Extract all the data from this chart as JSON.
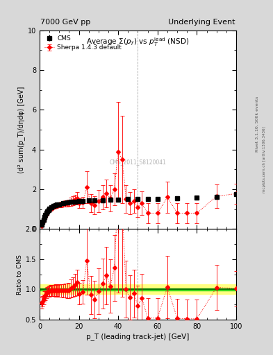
{
  "title_left": "7000 GeV pp",
  "title_right": "Underlying Event",
  "xlabel": "p_T (leading track-jet) [GeV]",
  "ylabel_main": "⟨d² sum(p_T)/dηdφ⟩ [GeV]",
  "ylabel_ratio": "Ratio to CMS",
  "watermark": "CMS_2011_S8120041",
  "rivet_label": "Rivet 3.1.10, 500k events",
  "mcplots_label": "mcplots.cern.ch [arXiv:1306.3436]",
  "cms_data": {
    "x": [
      1.0,
      1.5,
      2.0,
      2.5,
      3.0,
      3.5,
      4.0,
      4.5,
      5.0,
      6.0,
      7.0,
      8.0,
      9.0,
      10.0,
      12.0,
      14.0,
      16.0,
      18.0,
      20.0,
      22.0,
      25.0,
      28.0,
      32.0,
      36.0,
      40.0,
      45.0,
      50.0,
      55.0,
      60.0,
      70.0,
      80.0,
      90.0,
      100.0
    ],
    "y": [
      0.22,
      0.35,
      0.48,
      0.6,
      0.71,
      0.8,
      0.88,
      0.95,
      1.01,
      1.09,
      1.15,
      1.19,
      1.22,
      1.25,
      1.29,
      1.33,
      1.36,
      1.38,
      1.4,
      1.41,
      1.43,
      1.44,
      1.46,
      1.47,
      1.48,
      1.5,
      1.51,
      1.52,
      1.53,
      1.55,
      1.57,
      1.6,
      1.75
    ],
    "yerr": [
      0.015,
      0.018,
      0.02,
      0.022,
      0.023,
      0.024,
      0.024,
      0.025,
      0.025,
      0.026,
      0.026,
      0.027,
      0.027,
      0.027,
      0.027,
      0.028,
      0.028,
      0.028,
      0.028,
      0.028,
      0.029,
      0.029,
      0.029,
      0.029,
      0.029,
      0.03,
      0.03,
      0.03,
      0.03,
      0.03,
      0.031,
      0.032,
      0.038
    ]
  },
  "sherpa_data": {
    "x": [
      1.0,
      1.5,
      2.0,
      2.5,
      3.0,
      3.5,
      4.0,
      4.5,
      5.0,
      5.5,
      6.0,
      6.5,
      7.0,
      7.5,
      8.0,
      8.5,
      9.0,
      9.5,
      10.0,
      11.0,
      12.0,
      13.0,
      14.0,
      15.0,
      16.0,
      17.0,
      18.0,
      19.0,
      20.0,
      22.0,
      24.0,
      26.0,
      28.0,
      30.0,
      32.0,
      34.0,
      36.0,
      38.0,
      40.0,
      42.0,
      44.0,
      46.0,
      48.0,
      50.0,
      52.0,
      55.0,
      60.0,
      65.0,
      70.0,
      75.0,
      80.0,
      90.0,
      100.0
    ],
    "y": [
      0.17,
      0.28,
      0.4,
      0.53,
      0.64,
      0.75,
      0.84,
      0.92,
      0.98,
      1.03,
      1.07,
      1.1,
      1.13,
      1.15,
      1.17,
      1.19,
      1.2,
      1.21,
      1.22,
      1.24,
      1.26,
      1.28,
      1.3,
      1.32,
      1.38,
      1.42,
      1.48,
      1.55,
      1.3,
      1.35,
      2.1,
      1.3,
      1.2,
      1.4,
      1.6,
      1.8,
      1.55,
      2.0,
      3.9,
      3.5,
      1.5,
      1.3,
      1.4,
      1.1,
      1.3,
      0.8,
      0.8,
      1.6,
      0.8,
      0.8,
      0.8,
      1.65,
      1.78
    ],
    "yerr": [
      0.02,
      0.03,
      0.04,
      0.05,
      0.06,
      0.07,
      0.07,
      0.08,
      0.09,
      0.1,
      0.1,
      0.1,
      0.11,
      0.11,
      0.12,
      0.12,
      0.12,
      0.12,
      0.13,
      0.13,
      0.14,
      0.15,
      0.16,
      0.17,
      0.2,
      0.22,
      0.25,
      0.3,
      0.25,
      0.28,
      0.8,
      0.45,
      0.45,
      0.55,
      0.6,
      0.7,
      0.65,
      0.8,
      2.5,
      2.2,
      0.7,
      0.55,
      0.6,
      0.5,
      0.6,
      0.5,
      0.5,
      0.8,
      0.5,
      0.5,
      0.5,
      0.6,
      0.5
    ]
  },
  "ratio_band_yellow": {
    "low": 0.92,
    "high": 1.08
  },
  "ratio_band_green": {
    "low": 0.98,
    "high": 1.02
  },
  "ylim_main": [
    0.0,
    10.0
  ],
  "ylim_ratio": [
    0.5,
    2.0
  ],
  "xlim": [
    0,
    100
  ],
  "yticks_main": [
    0,
    2,
    4,
    6,
    8,
    10
  ],
  "yticks_ratio": [
    0.5,
    1.0,
    1.5,
    2.0
  ],
  "cms_color": "black",
  "sherpa_color": "red",
  "band_yellow": "#ffff80",
  "band_green": "#00cc00",
  "vlines": [
    50,
    100
  ]
}
